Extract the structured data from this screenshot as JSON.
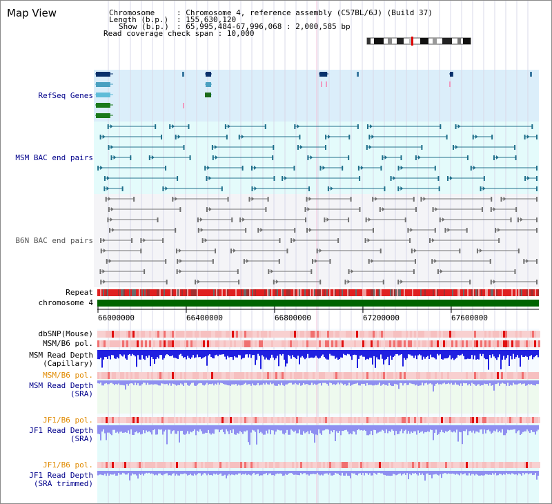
{
  "page": {
    "title": "Map View",
    "info": {
      "chromosome_label": "Chromosome",
      "chromosome_value": ": Chromosome 4, reference assembly (C57BL/6J) (Build 37)",
      "length_label": "Length (b.p.)",
      "length_value": ": 155,630,120",
      "show_label": "Show (b.p.)",
      "show_value": ": 65,995,484-67,996,068 : 2,000,585 bp",
      "coverage_line": "Read coverage check span : 10,000"
    }
  },
  "tracks": {
    "refseq": "RefSeq Genes",
    "msm_bac": "MSM BAC end pairs",
    "b6n_bac": "B6N BAC end pairs",
    "repeat": "Repeat",
    "chromosome": "chromosome 4",
    "dbsnp": "dbSNP(Mouse)",
    "msm_b6_pol_1": "MSM/B6 pol.",
    "msm_depth_cap_1": "MSM Read Depth",
    "msm_depth_cap_2": "(Capillary)",
    "msm_b6_pol_2": "MSM/B6 pol.",
    "msm_depth_sra_1": "MSM Read Depth",
    "msm_depth_sra_2": "(SRA)",
    "jf1_b6_pol_1": "JF1/B6 pol.",
    "jf1_depth_sra_1": "JF1 Read Depth",
    "jf1_depth_sra_2": "(SRA)",
    "jf1_b6_pol_2": "JF1/B6 pol.",
    "jf1_depth_trim_1": "JF1 Read Depth",
    "jf1_depth_trim_2": "(SRA trimmed)"
  },
  "axis": {
    "ticks": [
      "66000000",
      "66400000",
      "66800000",
      "67200000",
      "67600000"
    ]
  },
  "colors": {
    "refseq_bg": "#dbeefa",
    "msm_bg": "#e4fbfb",
    "b6n_bg": "#f4f4f7",
    "chromosome_bar": "#006400",
    "label_blue": "#00008b",
    "label_orange": "#e08a00",
    "depth_capillary": "#2020e0",
    "depth_sra": "#8f8ff0"
  }
}
